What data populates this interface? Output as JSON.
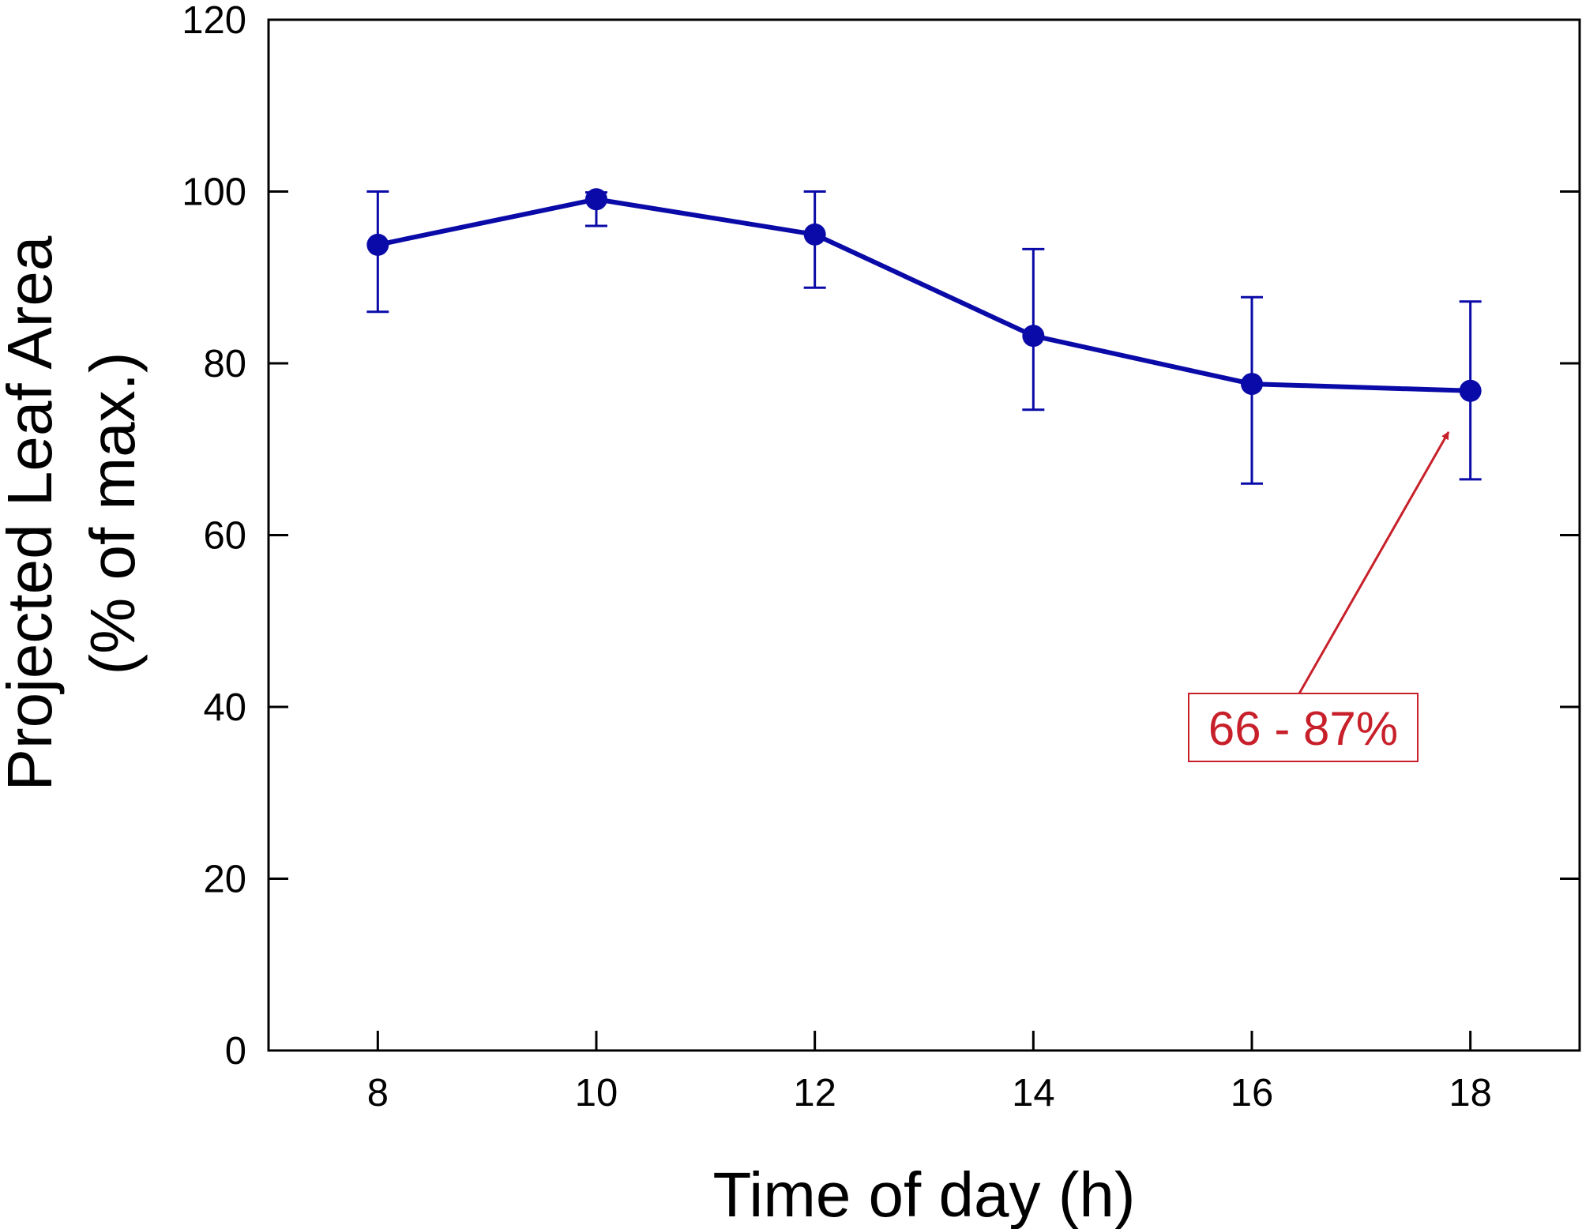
{
  "chart_data": {
    "type": "line",
    "title": "",
    "xlabel": "Time of day (h)",
    "ylabel_line1": "Projected Leaf Area",
    "ylabel_line2": "(% of max.)",
    "xlim": [
      7,
      19
    ],
    "ylim": [
      0,
      120
    ],
    "xticks": [
      8,
      10,
      12,
      14,
      16,
      18
    ],
    "yticks": [
      0,
      20,
      40,
      60,
      80,
      100,
      120
    ],
    "grid": false,
    "series": [
      {
        "name": "Projected leaf area",
        "color": "#0a0aa8",
        "x": [
          8,
          10,
          12,
          14,
          16,
          18
        ],
        "y": [
          93.8,
          99.1,
          95.0,
          83.2,
          77.6,
          76.8
        ],
        "err_upper": [
          100.0,
          99.9,
          100.0,
          93.3,
          87.7,
          87.2
        ],
        "err_lower": [
          86.0,
          96.0,
          88.8,
          74.6,
          66.0,
          66.5
        ]
      }
    ],
    "annotation": {
      "text": "66 - 87%",
      "color": "#c8202a",
      "points_to": [
        17.8,
        72.0
      ]
    }
  }
}
